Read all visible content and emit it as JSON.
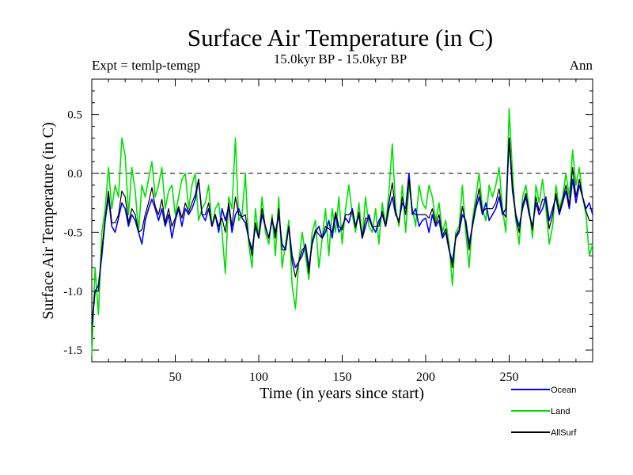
{
  "chart_data": {
    "type": "line",
    "title": "Surface Air Temperature (in C)",
    "subtitle": "15.0kyr BP - 15.0kyr BP",
    "expt_label": "Expt = temlp-temgp",
    "period_label": "Ann",
    "xlabel": "Time (in years since start)",
    "ylabel": "Surface Air Temperature (in C)",
    "xlim": [
      0,
      300
    ],
    "ylim": [
      -1.6,
      0.8
    ],
    "xticks": [
      50,
      100,
      150,
      200,
      250
    ],
    "yticks": [
      -1.5,
      -1.0,
      -0.5,
      0.0,
      0.5
    ],
    "ytick_labels": [
      "-1.5",
      "-1.0",
      "-0.5",
      "0.0",
      "0.5"
    ],
    "reference_line": 0.0,
    "legend_position": "bottom-right, below plot",
    "series": [
      {
        "name": "Ocean",
        "color": "#0000ff",
        "x": [
          0,
          2,
          4,
          6,
          8,
          10,
          12,
          14,
          16,
          18,
          20,
          22,
          24,
          26,
          28,
          30,
          32,
          34,
          36,
          38,
          40,
          42,
          44,
          46,
          48,
          50,
          52,
          54,
          56,
          58,
          60,
          62,
          64,
          66,
          68,
          70,
          72,
          74,
          76,
          78,
          80,
          82,
          84,
          86,
          88,
          90,
          92,
          94,
          96,
          98,
          100,
          102,
          104,
          106,
          108,
          110,
          112,
          114,
          116,
          118,
          120,
          122,
          124,
          126,
          128,
          130,
          132,
          134,
          136,
          138,
          140,
          142,
          144,
          146,
          148,
          150,
          152,
          154,
          156,
          158,
          160,
          162,
          164,
          166,
          168,
          170,
          172,
          174,
          176,
          178,
          180,
          182,
          184,
          186,
          188,
          190,
          192,
          194,
          196,
          198,
          200,
          202,
          204,
          206,
          208,
          210,
          212,
          214,
          216,
          218,
          220,
          222,
          224,
          226,
          228,
          230,
          232,
          234,
          236,
          238,
          240,
          242,
          244,
          246,
          248,
          250,
          252,
          254,
          256,
          258,
          260,
          262,
          264,
          266,
          268,
          270,
          272,
          274,
          276,
          278,
          280,
          282,
          284,
          286,
          288,
          290,
          292,
          294,
          296,
          298,
          300
        ],
        "values": [
          -1.28,
          -1.0,
          -0.95,
          -0.7,
          -0.4,
          -0.2,
          -0.45,
          -0.5,
          -0.38,
          -0.25,
          -0.3,
          -0.45,
          -0.35,
          -0.4,
          -0.5,
          -0.6,
          -0.4,
          -0.3,
          -0.22,
          -0.3,
          -0.4,
          -0.3,
          -0.45,
          -0.35,
          -0.55,
          -0.4,
          -0.3,
          -0.45,
          -0.3,
          -0.35,
          -0.3,
          -0.22,
          -0.05,
          -0.35,
          -0.4,
          -0.3,
          -0.45,
          -0.35,
          -0.5,
          -0.3,
          -0.4,
          -0.28,
          -0.5,
          -0.35,
          -0.3,
          -0.38,
          -0.42,
          -0.55,
          -0.65,
          -0.45,
          -0.55,
          -0.35,
          -0.45,
          -0.55,
          -0.4,
          -0.5,
          -0.35,
          -0.6,
          -0.65,
          -0.45,
          -0.7,
          -0.8,
          -0.75,
          -0.7,
          -0.6,
          -0.8,
          -0.6,
          -0.5,
          -0.45,
          -0.55,
          -0.5,
          -0.4,
          -0.55,
          -0.35,
          -0.5,
          -0.45,
          -0.38,
          -0.42,
          -0.3,
          -0.45,
          -0.35,
          -0.55,
          -0.45,
          -0.35,
          -0.45,
          -0.5,
          -0.4,
          -0.35,
          -0.45,
          -0.3,
          -0.2,
          -0.35,
          -0.4,
          -0.25,
          -0.3,
          -0.0,
          -0.35,
          -0.3,
          -0.45,
          -0.4,
          -0.38,
          -0.5,
          -0.35,
          -0.45,
          -0.4,
          -0.55,
          -0.5,
          -0.65,
          -0.75,
          -0.55,
          -0.5,
          -0.35,
          -0.4,
          -0.6,
          -0.45,
          -0.3,
          -0.2,
          -0.35,
          -0.25,
          -0.4,
          -0.35,
          -0.3,
          -0.2,
          -0.35,
          -0.3,
          0.3,
          -0.15,
          -0.35,
          -0.45,
          -0.3,
          -0.2,
          -0.35,
          -0.45,
          -0.25,
          -0.35,
          -0.3,
          -0.2,
          -0.4,
          -0.3,
          -0.2,
          -0.35,
          -0.25,
          -0.15,
          -0.3,
          -0.05,
          -0.25,
          -0.1,
          -0.2,
          -0.3,
          -0.25,
          -0.35
        ]
      },
      {
        "name": "Land",
        "color": "#00e000",
        "x": [
          0,
          2,
          4,
          6,
          8,
          10,
          12,
          14,
          16,
          18,
          20,
          22,
          24,
          26,
          28,
          30,
          32,
          34,
          36,
          38,
          40,
          42,
          44,
          46,
          48,
          50,
          52,
          54,
          56,
          58,
          60,
          62,
          64,
          66,
          68,
          70,
          72,
          74,
          76,
          78,
          80,
          82,
          84,
          86,
          88,
          90,
          92,
          94,
          96,
          98,
          100,
          102,
          104,
          106,
          108,
          110,
          112,
          114,
          116,
          118,
          120,
          122,
          124,
          126,
          128,
          130,
          132,
          134,
          136,
          138,
          140,
          142,
          144,
          146,
          148,
          150,
          152,
          154,
          156,
          158,
          160,
          162,
          164,
          166,
          168,
          170,
          172,
          174,
          176,
          178,
          180,
          182,
          184,
          186,
          188,
          190,
          192,
          194,
          196,
          198,
          200,
          202,
          204,
          206,
          208,
          210,
          212,
          214,
          216,
          218,
          220,
          222,
          224,
          226,
          228,
          230,
          232,
          234,
          236,
          238,
          240,
          242,
          244,
          246,
          248,
          250,
          252,
          254,
          256,
          258,
          260,
          262,
          264,
          266,
          268,
          270,
          272,
          274,
          276,
          278,
          280,
          282,
          284,
          286,
          288,
          290,
          292,
          294,
          296,
          298,
          300
        ],
        "values": [
          -1.55,
          -0.8,
          -1.2,
          -0.5,
          -0.3,
          0.05,
          -0.3,
          -0.1,
          -0.2,
          0.3,
          0.15,
          -0.35,
          0.05,
          -0.15,
          -0.5,
          -0.1,
          -0.2,
          -0.05,
          0.1,
          -0.2,
          -0.1,
          0.05,
          -0.3,
          -0.15,
          -0.1,
          -0.35,
          -0.2,
          -0.05,
          0.0,
          -0.3,
          -0.1,
          0.0,
          -0.4,
          -0.3,
          -0.25,
          -0.1,
          -0.45,
          -0.3,
          -0.25,
          -0.5,
          -0.85,
          -0.2,
          -0.3,
          0.3,
          -0.4,
          -0.35,
          0.0,
          -0.6,
          -0.8,
          -0.3,
          -0.55,
          -0.2,
          -0.5,
          -0.6,
          -0.35,
          -0.7,
          -0.2,
          -0.8,
          -0.6,
          -0.4,
          -0.95,
          -1.15,
          -0.75,
          -0.5,
          -0.7,
          -0.9,
          -0.5,
          -0.4,
          -0.8,
          -0.55,
          -0.3,
          -0.7,
          -0.3,
          -0.5,
          -0.2,
          -0.6,
          -0.3,
          -0.1,
          -0.35,
          -0.5,
          -0.25,
          -0.55,
          -0.2,
          -0.45,
          -0.5,
          -0.3,
          -0.6,
          -0.25,
          -0.45,
          -0.15,
          0.25,
          -0.3,
          -0.45,
          -0.1,
          -0.5,
          -0.1,
          -0.3,
          -0.45,
          -0.1,
          -0.25,
          -0.3,
          -0.1,
          -0.2,
          -0.4,
          -0.25,
          -0.5,
          -0.4,
          -0.6,
          -0.95,
          -0.5,
          -0.45,
          -0.1,
          -0.5,
          -0.8,
          -0.4,
          -0.2,
          0.0,
          -0.3,
          -0.4,
          -0.1,
          -0.2,
          -0.1,
          0.05,
          -0.3,
          -0.5,
          0.55,
          0.0,
          -0.4,
          -0.6,
          -0.2,
          -0.1,
          -0.3,
          -0.55,
          -0.1,
          -0.25,
          -0.05,
          -0.3,
          -0.6,
          -0.45,
          -0.1,
          -0.3,
          -0.2,
          0.0,
          -0.2,
          0.2,
          -0.1,
          0.05,
          -0.2,
          -0.35,
          -0.7,
          -0.6
        ]
      },
      {
        "name": "AllSurf",
        "color": "#000000",
        "x": [
          0,
          2,
          4,
          6,
          8,
          10,
          12,
          14,
          16,
          18,
          20,
          22,
          24,
          26,
          28,
          30,
          32,
          34,
          36,
          38,
          40,
          42,
          44,
          46,
          48,
          50,
          52,
          54,
          56,
          58,
          60,
          62,
          64,
          66,
          68,
          70,
          72,
          74,
          76,
          78,
          80,
          82,
          84,
          86,
          88,
          90,
          92,
          94,
          96,
          98,
          100,
          102,
          104,
          106,
          108,
          110,
          112,
          114,
          116,
          118,
          120,
          122,
          124,
          126,
          128,
          130,
          132,
          134,
          136,
          138,
          140,
          142,
          144,
          146,
          148,
          150,
          152,
          154,
          156,
          158,
          160,
          162,
          164,
          166,
          168,
          170,
          172,
          174,
          176,
          178,
          180,
          182,
          184,
          186,
          188,
          190,
          192,
          194,
          196,
          198,
          200,
          202,
          204,
          206,
          208,
          210,
          212,
          214,
          216,
          218,
          220,
          222,
          224,
          226,
          228,
          230,
          232,
          234,
          236,
          238,
          240,
          242,
          244,
          246,
          248,
          250,
          252,
          254,
          256,
          258,
          260,
          262,
          264,
          266,
          268,
          270,
          272,
          274,
          276,
          278,
          280,
          282,
          284,
          286,
          288,
          290,
          292,
          294,
          296,
          298,
          300
        ],
        "values": [
          -1.3,
          -1.0,
          -1.0,
          -0.65,
          -0.38,
          -0.15,
          -0.42,
          -0.42,
          -0.35,
          -0.15,
          -0.2,
          -0.42,
          -0.3,
          -0.35,
          -0.5,
          -0.48,
          -0.35,
          -0.25,
          -0.12,
          -0.28,
          -0.35,
          -0.22,
          -0.42,
          -0.3,
          -0.45,
          -0.38,
          -0.28,
          -0.38,
          -0.25,
          -0.33,
          -0.25,
          -0.18,
          -0.05,
          -0.35,
          -0.35,
          -0.25,
          -0.45,
          -0.35,
          -0.45,
          -0.38,
          -0.5,
          -0.25,
          -0.45,
          -0.2,
          -0.35,
          -0.37,
          -0.35,
          -0.55,
          -0.7,
          -0.42,
          -0.55,
          -0.3,
          -0.45,
          -0.55,
          -0.38,
          -0.55,
          -0.3,
          -0.65,
          -0.65,
          -0.45,
          -0.75,
          -0.88,
          -0.75,
          -0.65,
          -0.62,
          -0.85,
          -0.58,
          -0.48,
          -0.52,
          -0.55,
          -0.45,
          -0.47,
          -0.5,
          -0.33,
          -0.45,
          -0.48,
          -0.35,
          -0.35,
          -0.32,
          -0.46,
          -0.33,
          -0.55,
          -0.38,
          -0.38,
          -0.46,
          -0.45,
          -0.45,
          -0.32,
          -0.45,
          -0.25,
          -0.08,
          -0.33,
          -0.42,
          -0.2,
          -0.35,
          -0.05,
          -0.33,
          -0.35,
          -0.35,
          -0.35,
          -0.35,
          -0.38,
          -0.3,
          -0.43,
          -0.35,
          -0.53,
          -0.47,
          -0.63,
          -0.8,
          -0.53,
          -0.48,
          -0.28,
          -0.43,
          -0.65,
          -0.43,
          -0.27,
          -0.13,
          -0.33,
          -0.3,
          -0.3,
          -0.3,
          -0.25,
          -0.13,
          -0.33,
          -0.37,
          0.3,
          -0.1,
          -0.37,
          -0.5,
          -0.27,
          -0.17,
          -0.33,
          -0.48,
          -0.2,
          -0.32,
          -0.22,
          -0.23,
          -0.47,
          -0.35,
          -0.17,
          -0.33,
          -0.23,
          -0.1,
          -0.27,
          0.05,
          -0.2,
          -0.05,
          -0.2,
          -0.32,
          -0.4,
          -0.4
        ]
      }
    ]
  }
}
